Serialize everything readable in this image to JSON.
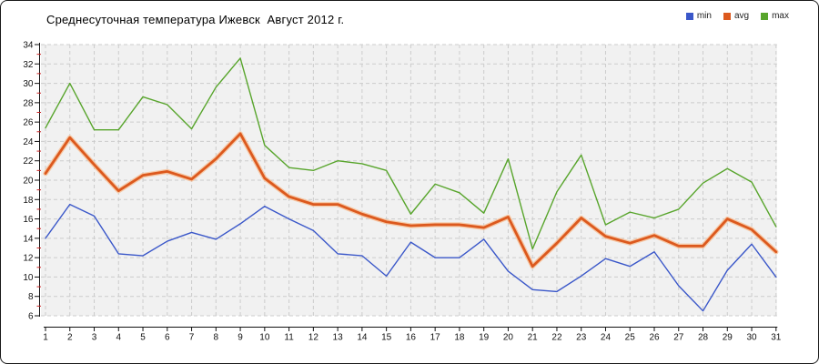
{
  "header": {
    "title": "Среднесуточная температура Ижевск  Август 2012 г."
  },
  "legend": [
    {
      "label": "min"
    },
    {
      "label": "avg"
    },
    {
      "label": "max"
    }
  ],
  "colors": {
    "min_line": "#3a57c9",
    "avg_line": "#dc591e",
    "avg_halo": "#f6c49e",
    "max_line": "#58a52c",
    "grid": "#cccccc",
    "axis": "#111111",
    "minor_tick": "#cc2222",
    "plot_bg": "#f1f1f1",
    "tick_text": "#111111"
  },
  "chart_data": {
    "type": "line",
    "title": "Среднесуточная температура Ижевск  Август 2012 г.",
    "xlabel": "",
    "ylabel": "",
    "x": [
      1,
      2,
      3,
      4,
      5,
      6,
      7,
      8,
      9,
      10,
      11,
      12,
      13,
      14,
      15,
      16,
      17,
      18,
      19,
      20,
      21,
      22,
      23,
      24,
      25,
      26,
      27,
      28,
      29,
      30,
      31
    ],
    "y_ticks": [
      34,
      32,
      30,
      28,
      26,
      24,
      22,
      20,
      18,
      16,
      14,
      12,
      10,
      8,
      6
    ],
    "ylim": [
      6,
      34
    ],
    "grid": true,
    "grid_style": "dashed",
    "legend_position": "top-right",
    "series": [
      {
        "name": "min",
        "color": "#3a57c9",
        "width": 1.4,
        "values": [
          14.0,
          17.5,
          16.3,
          12.4,
          12.2,
          13.7,
          14.6,
          13.9,
          15.5,
          17.3,
          16.0,
          14.8,
          12.4,
          12.2,
          10.1,
          13.6,
          12.0,
          12.0,
          13.9,
          10.6,
          8.7,
          8.5,
          10.1,
          11.9,
          11.1,
          12.6,
          9.1,
          6.5,
          10.7,
          13.4,
          10.0
        ]
      },
      {
        "name": "avg",
        "color": "#dc591e",
        "width": 2.8,
        "halo": "#f6c49e",
        "values": [
          20.7,
          24.4,
          21.6,
          18.9,
          20.5,
          20.9,
          20.1,
          22.2,
          24.8,
          20.2,
          18.3,
          17.5,
          17.5,
          16.5,
          15.7,
          15.3,
          15.4,
          15.4,
          15.1,
          16.2,
          11.1,
          13.5,
          16.1,
          14.2,
          13.5,
          14.3,
          13.2,
          13.2,
          16.0,
          14.9,
          12.6
        ]
      },
      {
        "name": "max",
        "color": "#58a52c",
        "width": 1.4,
        "values": [
          25.4,
          30.0,
          25.2,
          25.2,
          28.6,
          27.8,
          25.3,
          29.6,
          32.6,
          23.6,
          21.3,
          21.0,
          22.0,
          21.7,
          21.0,
          16.5,
          19.6,
          18.7,
          16.6,
          22.2,
          12.9,
          18.8,
          22.6,
          15.4,
          16.7,
          16.1,
          17.0,
          19.7,
          21.2,
          19.8,
          15.2
        ]
      }
    ]
  }
}
